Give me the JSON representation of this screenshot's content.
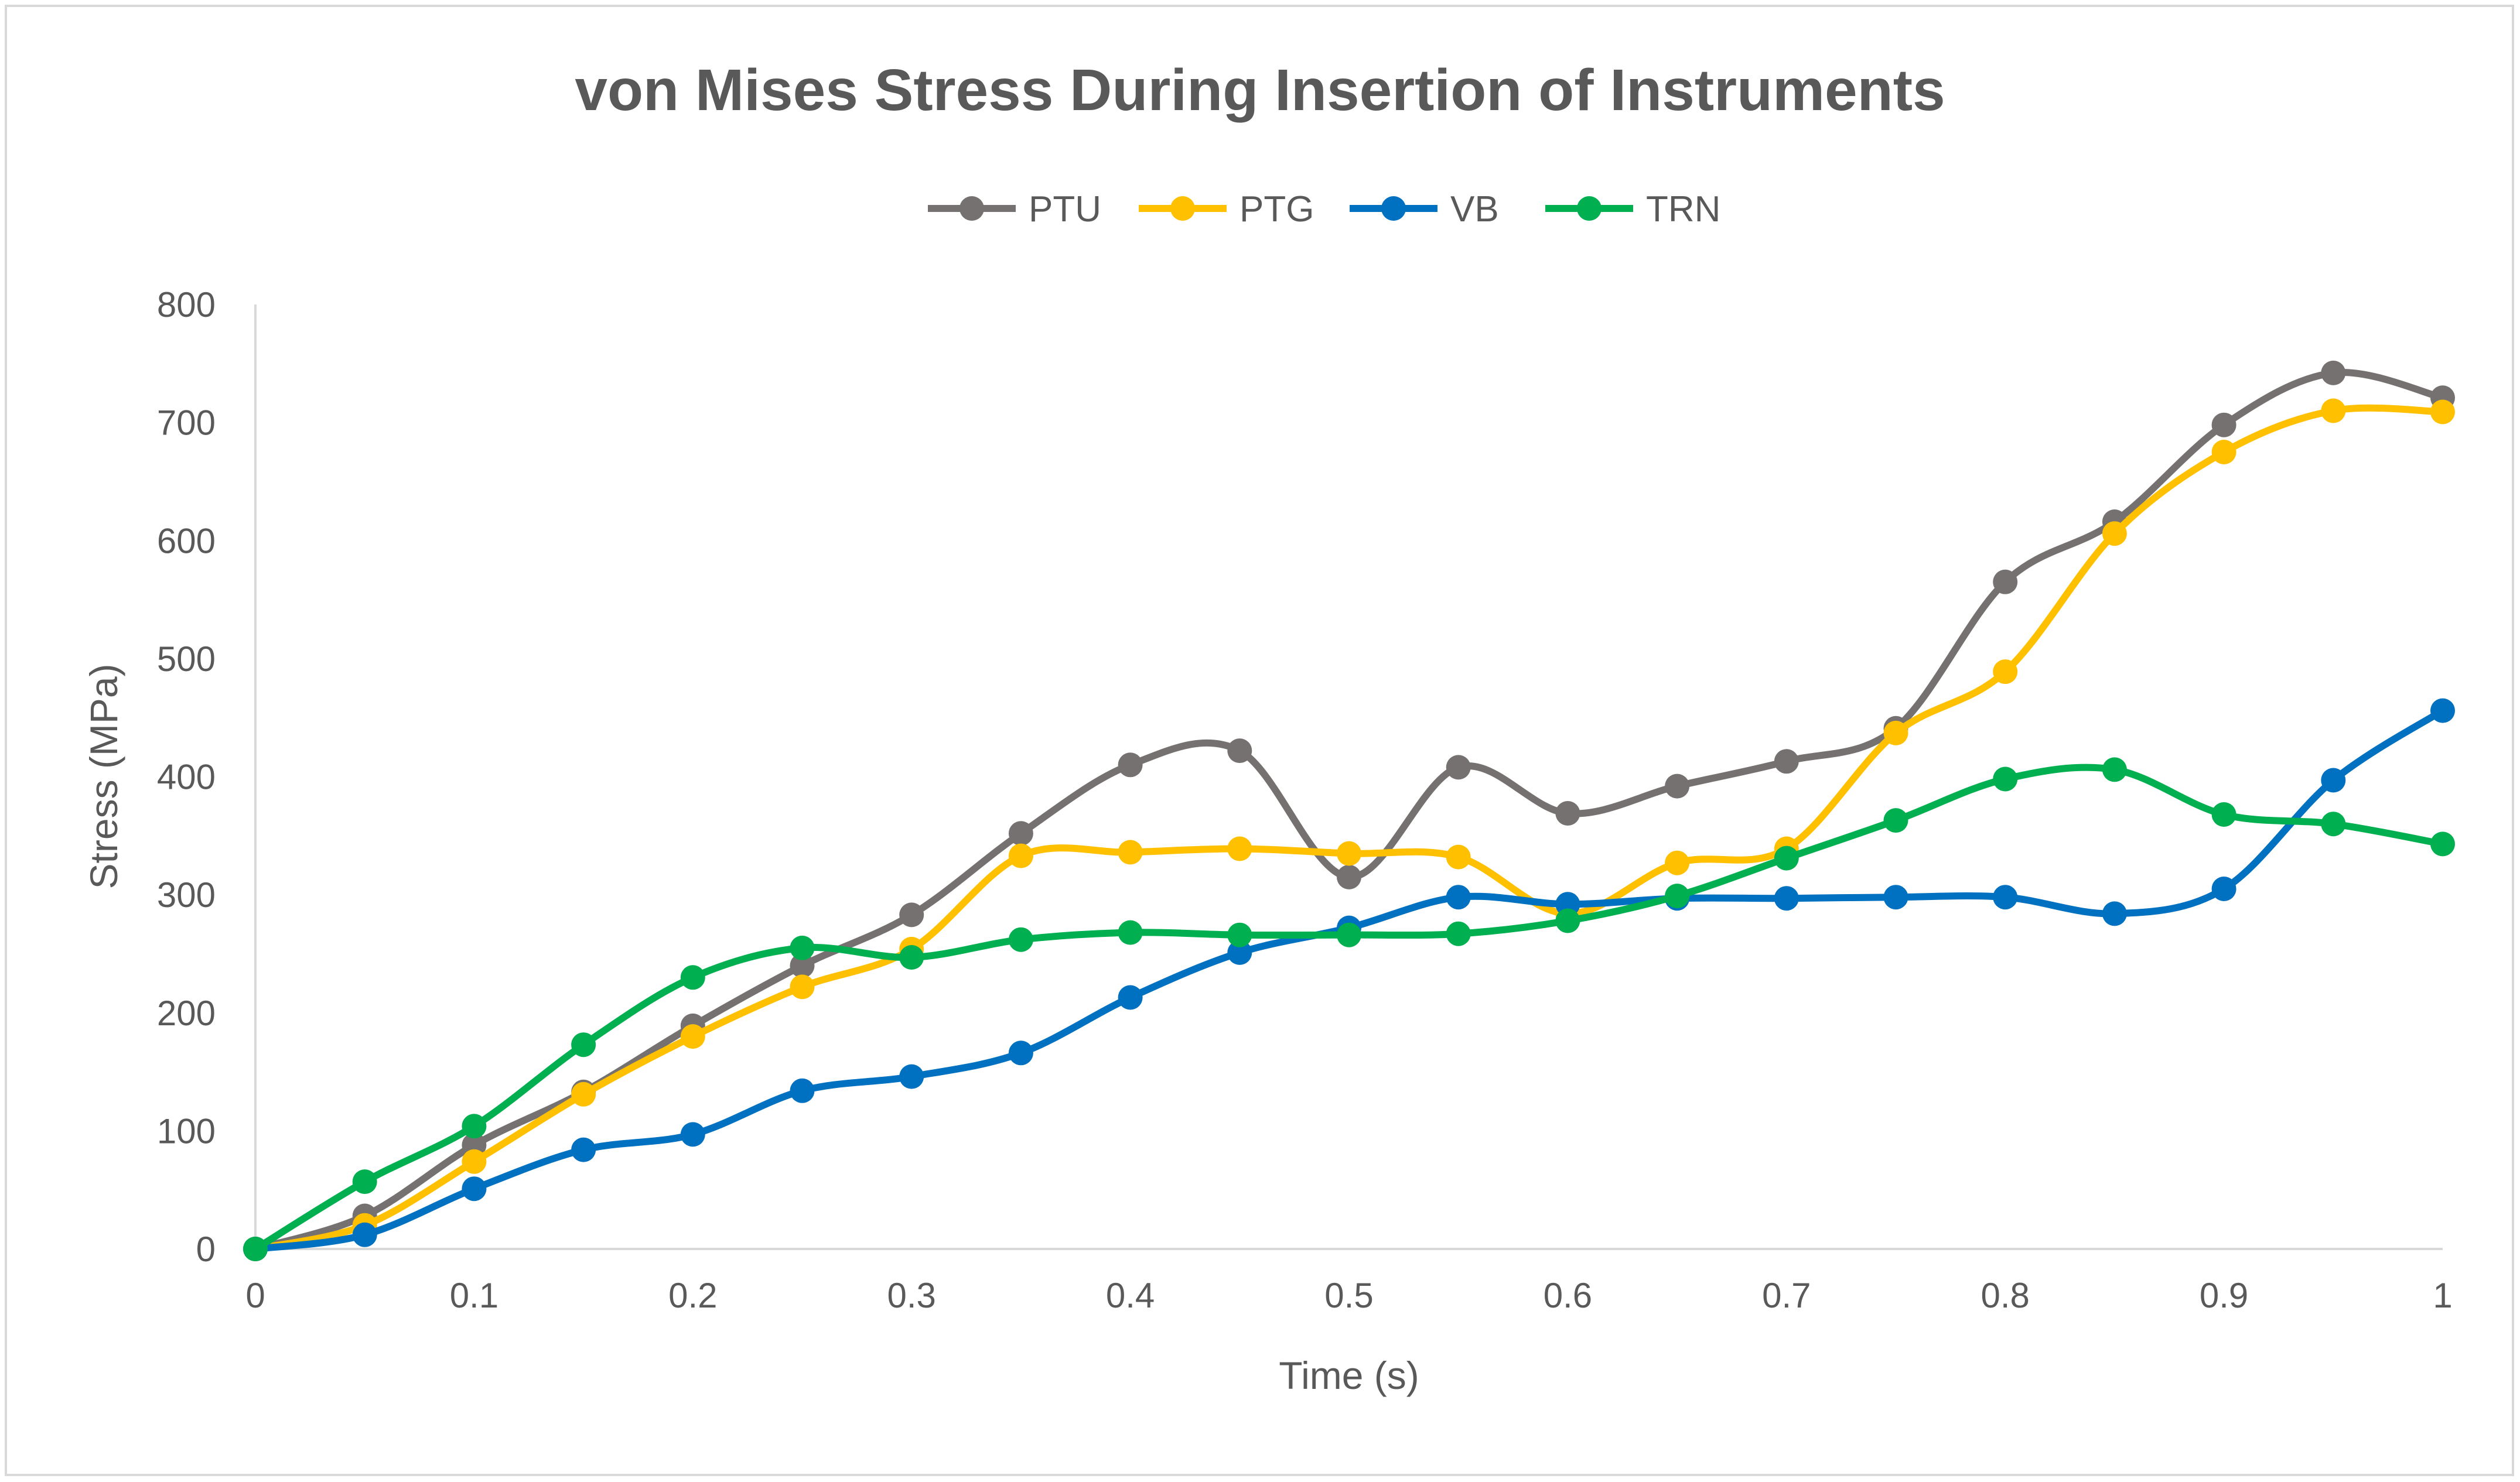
{
  "chart_data": {
    "type": "line",
    "title": "von Mises Stress During Insertion of Instruments",
    "xlabel": "Time (s)",
    "ylabel": "Stress (MPa)",
    "xlim": [
      0,
      1
    ],
    "ylim": [
      0,
      800
    ],
    "x": [
      0,
      0.05,
      0.1,
      0.15,
      0.2,
      0.25,
      0.3,
      0.35,
      0.4,
      0.45,
      0.5,
      0.55,
      0.6,
      0.65,
      0.7,
      0.75,
      0.8,
      0.85,
      0.9,
      0.95,
      1
    ],
    "x_tick_labels": [
      "0",
      "0.1",
      "0.2",
      "0.3",
      "0.4",
      "0.5",
      "0.6",
      "0.7",
      "0.8",
      "0.9",
      "1"
    ],
    "y_tick_labels": [
      "0",
      "100",
      "200",
      "300",
      "400",
      "500",
      "600",
      "700",
      "800"
    ],
    "legend_position": "top-center",
    "grid": false,
    "smooth": true,
    "series": [
      {
        "name": "PTU",
        "color": "#767171",
        "values": [
          0,
          28,
          88,
          133,
          189,
          240,
          283,
          352,
          410,
          422,
          315,
          408,
          369,
          392,
          413,
          441,
          565,
          616,
          698,
          742,
          721
        ]
      },
      {
        "name": "PTG",
        "color": "#ffc000",
        "values": [
          0,
          20,
          74,
          131,
          180,
          222,
          254,
          333,
          336,
          339,
          335,
          332,
          284,
          327,
          339,
          437,
          489,
          606,
          675,
          710,
          709
        ]
      },
      {
        "name": "VB",
        "color": "#0070c0",
        "values": [
          0,
          12,
          51,
          84,
          97,
          134,
          146,
          166,
          213,
          251,
          272,
          298,
          292,
          297,
          297,
          298,
          298,
          284,
          305,
          397,
          456
        ]
      },
      {
        "name": "TRN",
        "color": "#00b050",
        "values": [
          0,
          57,
          104,
          173,
          230,
          255,
          247,
          262,
          268,
          266,
          266,
          267,
          278,
          299,
          331,
          363,
          398,
          406,
          368,
          360,
          343
        ]
      }
    ]
  }
}
